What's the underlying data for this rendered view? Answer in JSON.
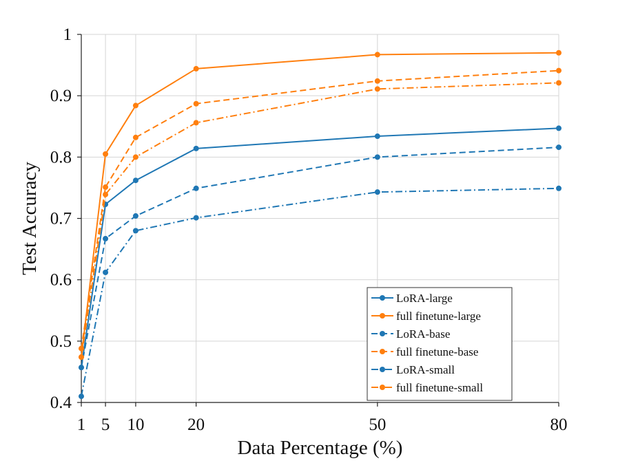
{
  "chart_data": {
    "type": "line",
    "title": "",
    "xlabel": "Data Percentage (%)",
    "ylabel": "Test Accuracy",
    "x": [
      1,
      5,
      10,
      20,
      50,
      80
    ],
    "x_tick_labels": [
      "1",
      "5",
      "10",
      "20",
      "50",
      "80"
    ],
    "xlim": [
      1,
      80
    ],
    "y_ticks": [
      0.4,
      0.5,
      0.6,
      0.7,
      0.8,
      0.9,
      1.0
    ],
    "y_tick_labels": [
      "0.4",
      "0.5",
      "0.6",
      "0.7",
      "0.8",
      "0.9",
      "1"
    ],
    "ylim": [
      0.4,
      1.0
    ],
    "grid": true,
    "legend_position": "bottom-right",
    "series": [
      {
        "name": "LoRA-large",
        "color": "#1f77b4",
        "dash": "solid",
        "values": [
          0.457,
          0.723,
          0.762,
          0.814,
          0.834,
          0.847
        ]
      },
      {
        "name": "full finetune-large",
        "color": "#ff7f0e",
        "dash": "solid",
        "values": [
          0.474,
          0.805,
          0.884,
          0.944,
          0.967,
          0.97
        ]
      },
      {
        "name": "LoRA-base",
        "color": "#1f77b4",
        "dash": "dashed",
        "values": [
          0.457,
          0.667,
          0.704,
          0.749,
          0.8,
          0.816
        ]
      },
      {
        "name": "full finetune-base",
        "color": "#ff7f0e",
        "dash": "dashed",
        "values": [
          0.488,
          0.751,
          0.832,
          0.887,
          0.924,
          0.941
        ]
      },
      {
        "name": "LoRA-small",
        "color": "#1f77b4",
        "dash": "dashdot",
        "values": [
          0.41,
          0.612,
          0.68,
          0.701,
          0.743,
          0.749
        ]
      },
      {
        "name": "full finetune-small",
        "color": "#ff7f0e",
        "dash": "dashdot",
        "values": [
          0.474,
          0.739,
          0.8,
          0.856,
          0.911,
          0.921
        ]
      }
    ]
  }
}
